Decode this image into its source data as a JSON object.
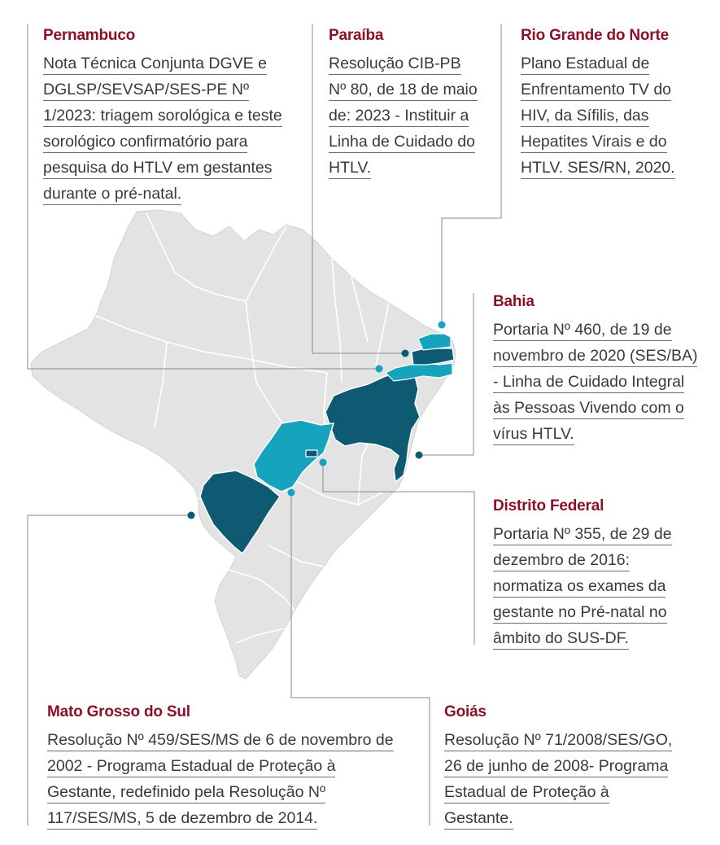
{
  "colors": {
    "map_base": "#e3e3e3",
    "map_border": "#ffffff",
    "dark_state": "#0d5a72",
    "light_state": "#16a3bd",
    "title_red": "#8b1028",
    "body_text": "#3a3a3a",
    "leader_line": "#8a8a8a",
    "dot": "#0d5a72"
  },
  "states": {
    "pernambuco": {
      "title": "Pernambuco",
      "text": "Nota Técnica Conjunta DGVE e DGLSP/SEVSAP/SES-PE Nº 1/2023: triagem sorológica e teste sorológico confirmatório para pesquisa do HTLV em gestantes durante o pré-natal.",
      "shade": "dark"
    },
    "paraiba": {
      "title": "Paraíba",
      "text": "Resolução CIB-PB Nº 80, de 18 de maio de: 2023 - Instituir a Linha de Cuidado do HTLV.",
      "shade": "dark"
    },
    "rio_grande_do_norte": {
      "title": "Rio Grande do Norte",
      "text": "Plano Estadual de Enfrentamento TV do HIV, da Sífilis, das Hepatites Virais e do HTLV. SES/RN, 2020.",
      "shade": "light"
    },
    "bahia": {
      "title": "Bahia",
      "text": "Portaria Nº 460, de 19 de novembro de 2020 (SES/BA) - Linha de Cuidado Integral às Pessoas Vivendo com o vírus HTLV.",
      "shade": "dark"
    },
    "distrito_federal": {
      "title": "Distrito Federal",
      "text": "Portaria Nº 355, de 29 de dezembro de 2016: normatiza os exames da gestante no Pré-natal no âmbito do SUS-DF.",
      "shade": "dark"
    },
    "mato_grosso_do_sul": {
      "title": "Mato Grosso do Sul",
      "text": "Resolução Nº 459/SES/MS de 6 de novembro de 2002 - Programa Estadual de Proteção à Gestante, redefinido pela Resolução Nº 117/SES/MS, 5 de dezembro de 2014.",
      "shade": "dark"
    },
    "goias": {
      "title": "Goiás",
      "text": "Resolução Nº 71/2008/SES/GO, 26 de junho de 2008- Programa Estadual de Proteção à Gestante.",
      "shade": "light"
    }
  }
}
